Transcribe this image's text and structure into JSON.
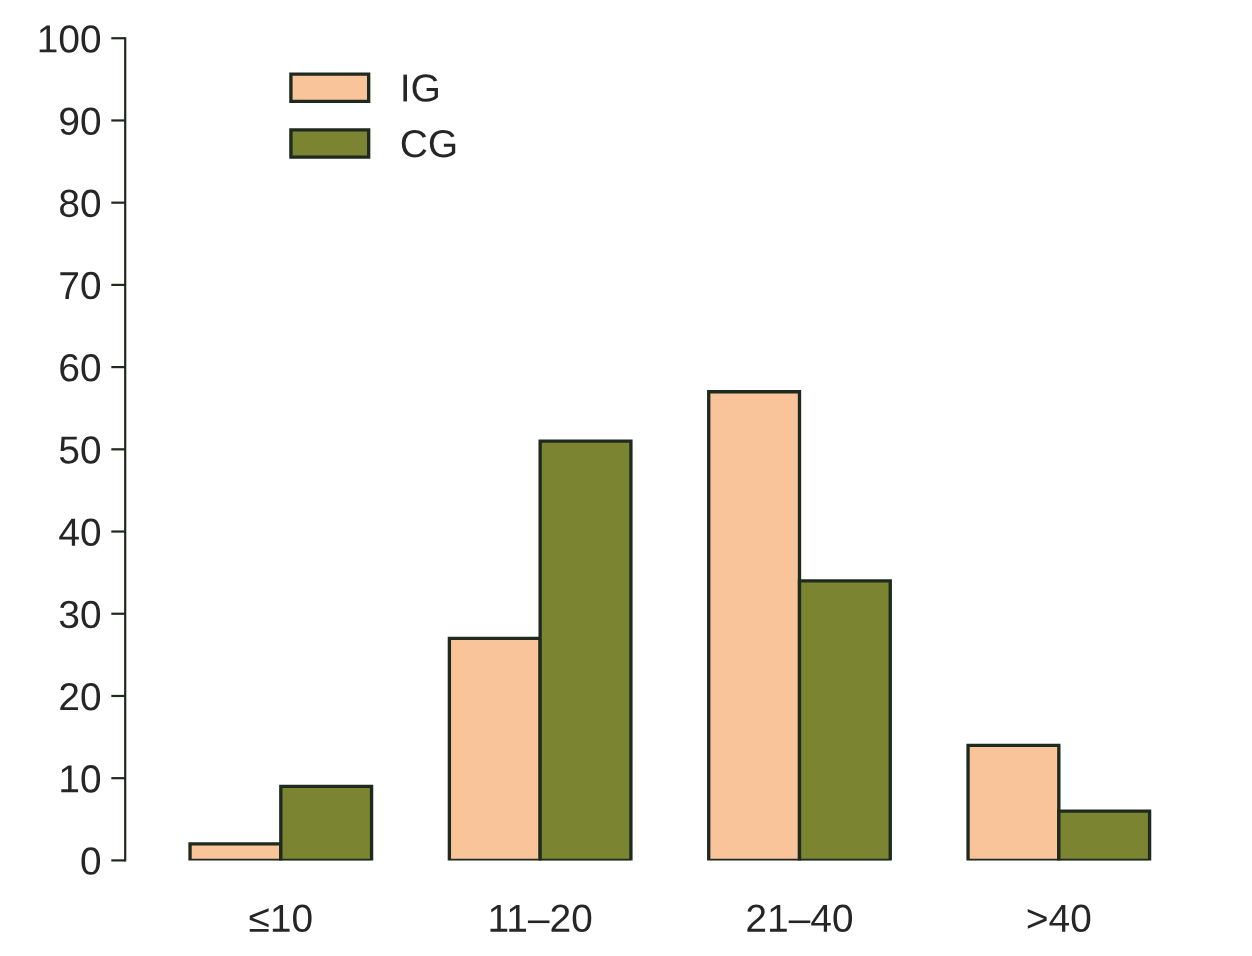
{
  "chart_data": {
    "type": "bar",
    "categories": [
      "≤10",
      "11–20",
      "21–40",
      ">40"
    ],
    "series": [
      {
        "name": "IG",
        "color": "#f9c49a",
        "values": [
          2,
          27,
          57,
          14
        ]
      },
      {
        "name": "CG",
        "color": "#7a8431",
        "values": [
          9,
          51,
          34,
          6
        ]
      }
    ],
    "ylim": [
      0,
      100
    ],
    "yticks": [
      0,
      10,
      20,
      30,
      40,
      50,
      60,
      70,
      80,
      90,
      100
    ],
    "grid": false,
    "legend": "top left"
  }
}
